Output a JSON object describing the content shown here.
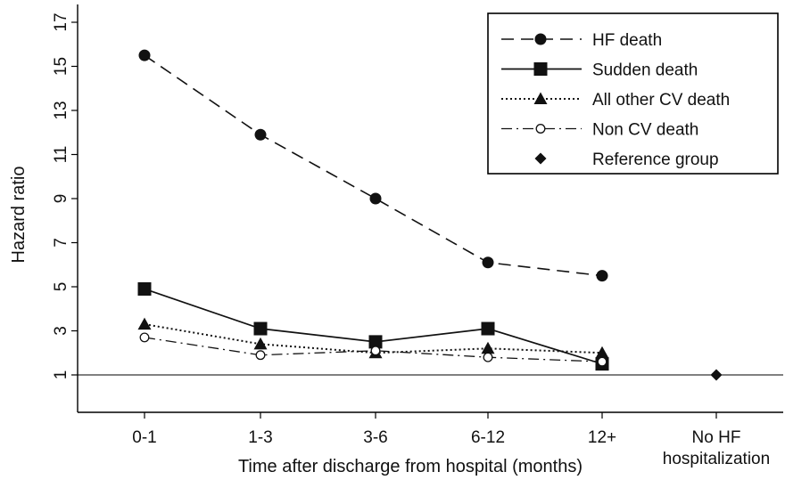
{
  "chart_data": {
    "type": "line",
    "title": "",
    "xlabel": "Time after discharge from hospital (months)",
    "ylabel": "Hazard ratio",
    "categories": [
      "0-1",
      "1-3",
      "3-6",
      "6-12",
      "12+",
      "No HF hospitalization"
    ],
    "category_label_lines": [
      [
        "0-1"
      ],
      [
        "1-3"
      ],
      [
        "3-6"
      ],
      [
        "6-12"
      ],
      [
        "12+"
      ],
      [
        "No HF",
        "hospitalization"
      ]
    ],
    "yticks": [
      1,
      3,
      5,
      7,
      9,
      11,
      13,
      15,
      17
    ],
    "ylim": [
      0,
      17
    ],
    "reference_line": 1,
    "grid": false,
    "legend_position": "top-right",
    "series": [
      {
        "name": "HF death",
        "line": "dashed",
        "marker": "circle",
        "values": [
          15.5,
          11.9,
          9.0,
          6.1,
          5.5,
          null
        ]
      },
      {
        "name": "Sudden death",
        "line": "solid",
        "marker": "square",
        "values": [
          4.9,
          3.1,
          2.5,
          3.1,
          1.5,
          null
        ]
      },
      {
        "name": "All other CV death",
        "line": "dotted",
        "marker": "triangle",
        "values": [
          3.3,
          2.4,
          2.0,
          2.2,
          2.0,
          null
        ]
      },
      {
        "name": "Non CV death",
        "line": "dashdot",
        "marker": "open-circle",
        "values": [
          2.7,
          1.9,
          2.1,
          1.8,
          1.6,
          null
        ]
      },
      {
        "name": "Reference group",
        "line": "none",
        "marker": "diamond",
        "values": [
          null,
          null,
          null,
          null,
          null,
          1.0
        ]
      }
    ]
  }
}
